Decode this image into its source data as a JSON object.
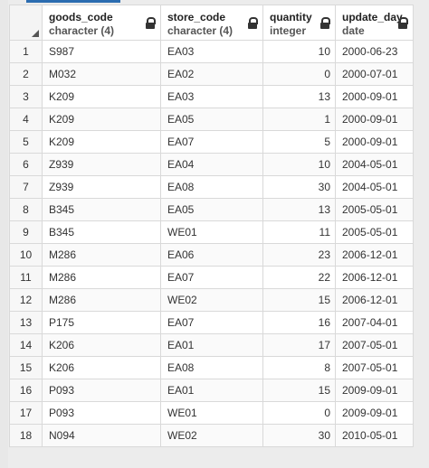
{
  "columns": [
    {
      "name": "goods_code",
      "type": "character (4)"
    },
    {
      "name": "store_code",
      "type": "character (4)"
    },
    {
      "name": "quantity",
      "type": "integer"
    },
    {
      "name": "update_day",
      "type": "date"
    }
  ],
  "rows": [
    {
      "n": "1",
      "goods_code": "S987",
      "store_code": "EA03",
      "quantity": "10",
      "update_day": "2000-06-23"
    },
    {
      "n": "2",
      "goods_code": "M032",
      "store_code": "EA02",
      "quantity": "0",
      "update_day": "2000-07-01"
    },
    {
      "n": "3",
      "goods_code": "K209",
      "store_code": "EA03",
      "quantity": "13",
      "update_day": "2000-09-01"
    },
    {
      "n": "4",
      "goods_code": "K209",
      "store_code": "EA05",
      "quantity": "1",
      "update_day": "2000-09-01"
    },
    {
      "n": "5",
      "goods_code": "K209",
      "store_code": "EA07",
      "quantity": "5",
      "update_day": "2000-09-01"
    },
    {
      "n": "6",
      "goods_code": "Z939",
      "store_code": "EA04",
      "quantity": "10",
      "update_day": "2004-05-01"
    },
    {
      "n": "7",
      "goods_code": "Z939",
      "store_code": "EA08",
      "quantity": "30",
      "update_day": "2004-05-01"
    },
    {
      "n": "8",
      "goods_code": "B345",
      "store_code": "EA05",
      "quantity": "13",
      "update_day": "2005-05-01"
    },
    {
      "n": "9",
      "goods_code": "B345",
      "store_code": "WE01",
      "quantity": "11",
      "update_day": "2005-05-01"
    },
    {
      "n": "10",
      "goods_code": "M286",
      "store_code": "EA06",
      "quantity": "23",
      "update_day": "2006-12-01"
    },
    {
      "n": "11",
      "goods_code": "M286",
      "store_code": "EA07",
      "quantity": "22",
      "update_day": "2006-12-01"
    },
    {
      "n": "12",
      "goods_code": "M286",
      "store_code": "WE02",
      "quantity": "15",
      "update_day": "2006-12-01"
    },
    {
      "n": "13",
      "goods_code": "P175",
      "store_code": "EA07",
      "quantity": "16",
      "update_day": "2007-04-01"
    },
    {
      "n": "14",
      "goods_code": "K206",
      "store_code": "EA01",
      "quantity": "17",
      "update_day": "2007-05-01"
    },
    {
      "n": "15",
      "goods_code": "K206",
      "store_code": "EA08",
      "quantity": "8",
      "update_day": "2007-05-01"
    },
    {
      "n": "16",
      "goods_code": "P093",
      "store_code": "EA01",
      "quantity": "15",
      "update_day": "2009-09-01"
    },
    {
      "n": "17",
      "goods_code": "P093",
      "store_code": "WE01",
      "quantity": "0",
      "update_day": "2009-09-01"
    },
    {
      "n": "18",
      "goods_code": "N094",
      "store_code": "WE02",
      "quantity": "30",
      "update_day": "2010-05-01"
    }
  ],
  "colors": {
    "accent": "#2b6cb0",
    "grid_line": "#d9d9d9",
    "header_bg": "#ffffff"
  },
  "icons": {
    "column_lock": "lock-icon",
    "corner": "select-all-icon"
  }
}
